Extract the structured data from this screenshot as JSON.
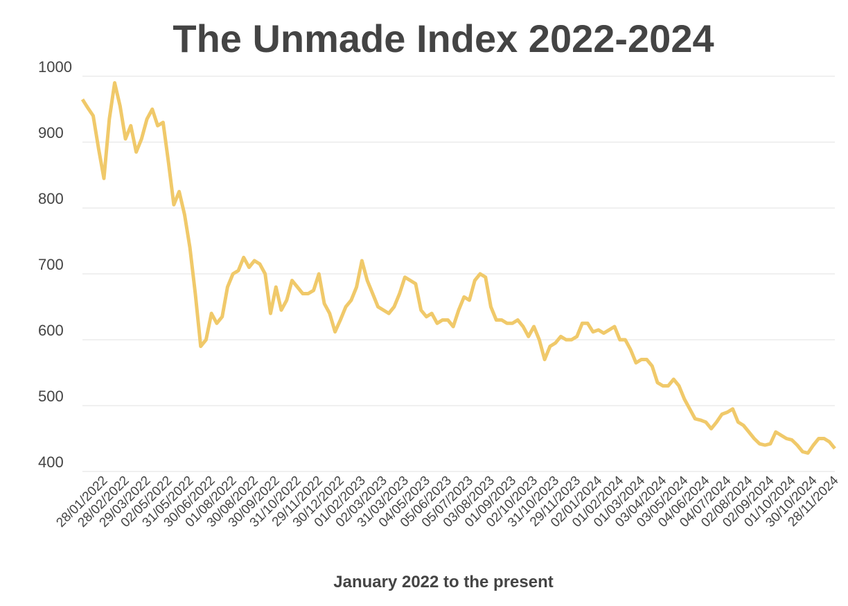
{
  "chart_data": {
    "type": "line",
    "title": "The Unmade Index 2022-2024",
    "x_label": "January 2022 to the present",
    "categories": [
      null,
      null,
      null,
      null,
      "28/01/2022",
      null,
      null,
      null,
      "28/02/2022",
      null,
      null,
      null,
      "29/03/2022",
      null,
      null,
      null,
      "02/05/2022",
      null,
      null,
      null,
      "31/05/2022",
      null,
      null,
      null,
      "30/06/2022",
      null,
      null,
      null,
      "01/08/2022",
      null,
      null,
      null,
      "30/08/2022",
      null,
      null,
      null,
      "30/09/2022",
      null,
      null,
      null,
      "31/10/2022",
      null,
      null,
      null,
      "29/11/2022",
      null,
      null,
      null,
      "30/12/2022",
      null,
      null,
      null,
      "01/02/2023",
      null,
      null,
      null,
      "02/03/2023",
      null,
      null,
      null,
      "31/03/2023",
      null,
      null,
      null,
      "04/05/2023",
      null,
      null,
      null,
      "05/06/2023",
      null,
      null,
      null,
      "05/07/2023",
      null,
      null,
      null,
      "03/08/2023",
      null,
      null,
      null,
      "01/09/2023",
      null,
      null,
      null,
      "02/10/2023",
      null,
      null,
      null,
      "31/10/2023",
      null,
      null,
      null,
      "29/11/2023",
      null,
      null,
      null,
      "02/01/2024",
      null,
      null,
      null,
      "01/02/2024",
      null,
      null,
      null,
      "01/03/2024",
      null,
      null,
      null,
      "03/04/2024",
      null,
      null,
      null,
      "03/05/2024",
      null,
      null,
      null,
      "04/06/2024",
      null,
      null,
      null,
      "04/07/2024",
      null,
      null,
      null,
      "02/08/2024",
      null,
      null,
      null,
      "02/09/2024",
      null,
      null,
      null,
      "01/10/2024",
      null,
      null,
      null,
      "30/10/2024",
      null,
      null,
      null,
      "28/11/2024"
    ],
    "series": [
      {
        "name": "The Unmade Index",
        "color": "#f0c96a",
        "values": [
          965,
          952,
          940,
          890,
          845,
          935,
          990,
          955,
          905,
          925,
          885,
          905,
          935,
          950,
          925,
          930,
          870,
          805,
          825,
          790,
          740,
          670,
          590,
          600,
          640,
          625,
          635,
          680,
          700,
          705,
          725,
          710,
          720,
          715,
          700,
          640,
          680,
          645,
          660,
          690,
          680,
          670,
          670,
          675,
          700,
          655,
          640,
          612,
          630,
          650,
          660,
          680,
          720,
          690,
          670,
          650,
          645,
          640,
          650,
          670,
          695,
          690,
          685,
          645,
          635,
          640,
          625,
          630,
          630,
          620,
          645,
          665,
          660,
          690,
          700,
          695,
          650,
          630,
          630,
          625,
          625,
          630,
          620,
          605,
          620,
          600,
          570,
          590,
          595,
          605,
          600,
          600,
          605,
          625,
          625,
          612,
          615,
          610,
          615,
          620,
          600,
          600,
          585,
          565,
          570,
          570,
          560,
          535,
          530,
          530,
          540,
          530,
          510,
          495,
          480,
          478,
          475,
          465,
          475,
          487,
          490,
          495,
          475,
          470,
          460,
          450,
          442,
          440,
          442,
          460,
          455,
          450,
          448,
          440,
          430,
          428,
          440,
          450,
          450,
          445,
          435
        ]
      }
    ],
    "ylim": [
      400,
      1000
    ],
    "yticks": [
      400,
      500,
      600,
      700,
      800,
      900,
      1000
    ],
    "grid": true
  }
}
